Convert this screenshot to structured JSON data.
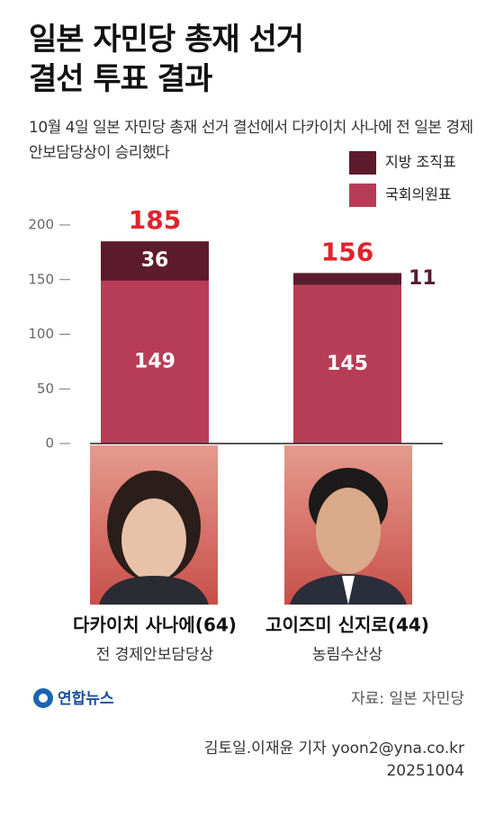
{
  "chart_data": {
    "type": "stacked_bar",
    "title": "일본 자민당 총재 선거 결선 투표 결과",
    "subtitle": "10월 4일 일본 자민당 총재 선거 결선에서 다카이치 사나에 전 일본 경제안보담당상이 승리했다",
    "categories": [
      "다카이치 사나에(64)",
      "고이즈미 신지로(44)"
    ],
    "category_roles": [
      "전 경제안보담당상",
      "농림수산상"
    ],
    "series": [
      {
        "name": "국회의원표",
        "color": "#b73d56",
        "values": [
          149,
          145
        ]
      },
      {
        "name": "지방 조직표",
        "color": "#5b1b2c",
        "values": [
          36,
          11
        ]
      }
    ],
    "totals": [
      185,
      156
    ],
    "total_color": "#e0242c",
    "ylim": [
      0,
      200
    ],
    "yticks": [
      0,
      50,
      100,
      150,
      200
    ],
    "source": "자료: 일본 자민당",
    "logo": "연합뉴스",
    "credit": "김토일.이재윤 기자 yoon2@yna.co.kr",
    "date": "20251004"
  }
}
